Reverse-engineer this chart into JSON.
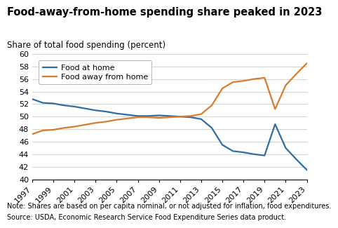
{
  "title": "Food-away-from-home spending share peaked in 2023",
  "ylabel": "Share of total food spending (percent)",
  "note": "Note: Shares are based on per capita nominal, or not adjusted for inflation, food expenditures.",
  "source": "Source: USDA, Economic Research Service Food Expenditure Series data product.",
  "years": [
    1997,
    1998,
    1999,
    2000,
    2001,
    2002,
    2003,
    2004,
    2005,
    2006,
    2007,
    2008,
    2009,
    2010,
    2011,
    2012,
    2013,
    2014,
    2015,
    2016,
    2017,
    2018,
    2019,
    2020,
    2021,
    2022,
    2023
  ],
  "food_at_home": [
    52.8,
    52.2,
    52.1,
    51.8,
    51.6,
    51.3,
    51.0,
    50.8,
    50.5,
    50.3,
    50.1,
    50.1,
    50.2,
    50.1,
    50.0,
    49.9,
    49.6,
    48.2,
    45.5,
    44.5,
    44.3,
    44.0,
    43.8,
    48.8,
    45.0,
    43.2,
    41.5
  ],
  "food_away_from_home": [
    47.2,
    47.8,
    47.9,
    48.2,
    48.4,
    48.7,
    49.0,
    49.2,
    49.5,
    49.7,
    49.9,
    49.9,
    49.8,
    49.9,
    50.0,
    50.1,
    50.4,
    51.8,
    54.5,
    55.5,
    55.7,
    56.0,
    56.2,
    51.2,
    55.0,
    56.8,
    58.5
  ],
  "food_at_home_color": "#2e6da4",
  "food_away_color": "#d97b2c",
  "ylim": [
    40,
    60
  ],
  "yticks": [
    40,
    42,
    44,
    46,
    48,
    50,
    52,
    54,
    56,
    58,
    60
  ],
  "xtick_years": [
    1997,
    1999,
    2001,
    2003,
    2005,
    2007,
    2009,
    2011,
    2013,
    2015,
    2017,
    2019,
    2021,
    2023
  ],
  "background_color": "#ffffff",
  "grid_color": "#cccccc",
  "legend_labels": [
    "Food at home",
    "Food away from home"
  ],
  "title_fontsize": 10.5,
  "axis_label_fontsize": 8.5,
  "tick_fontsize": 8,
  "note_fontsize": 7,
  "line_width": 1.6
}
